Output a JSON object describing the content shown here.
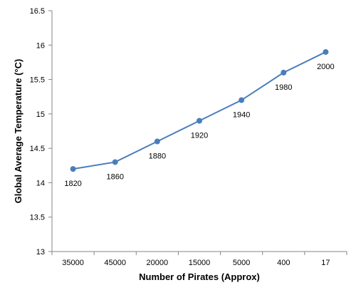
{
  "chart_data": {
    "type": "line",
    "title": "",
    "xlabel": "Number of Pirates (Approx)",
    "ylabel": "Global Average Temperature (°C)",
    "categories": [
      "35000",
      "45000",
      "20000",
      "15000",
      "5000",
      "400",
      "17"
    ],
    "series": [
      {
        "values": [
          14.2,
          14.3,
          14.6,
          14.9,
          15.2,
          15.6,
          15.9
        ],
        "point_labels": [
          "1820",
          "1860",
          "1880",
          "1920",
          "1940",
          "1980",
          "2000"
        ],
        "color": "#4a7ebb",
        "marker": "circle"
      }
    ],
    "ylim": [
      13,
      16.5
    ],
    "yticks": [
      "13",
      "13.5",
      "14",
      "14.5",
      "15",
      "15.5",
      "16",
      "16.5"
    ],
    "grid": false,
    "legend": "none"
  }
}
